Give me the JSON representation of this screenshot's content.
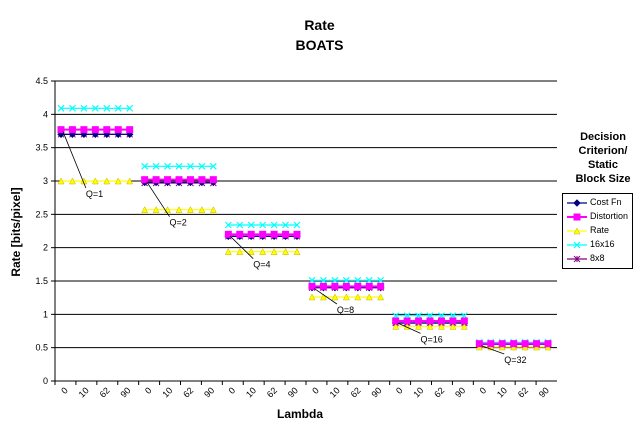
{
  "chart_data": {
    "type": "line",
    "title": "Rate",
    "subtitle": "BOATS",
    "xlabel": "Lambda",
    "ylabel": "Rate [bits/pixel]",
    "ylim": [
      0,
      4.5
    ],
    "yticks": [
      "0",
      "0.5",
      "1",
      "1.5",
      "2",
      "2.5",
      "3",
      "3.5",
      "4",
      "4.5"
    ],
    "grid": true,
    "categories": [
      "0",
      "10",
      "62",
      "90",
      "0",
      "10",
      "62",
      "90",
      "0",
      "10",
      "62",
      "90",
      "0",
      "10",
      "62",
      "90",
      "0",
      "10",
      "62",
      "90",
      "0",
      "10",
      "62",
      "90"
    ],
    "group_size": 4,
    "points_per_group": 7,
    "groups": [
      {
        "label": "Q=1",
        "cost_fn": 3.7,
        "distortion": 3.77,
        "rate": 3.0,
        "b16": 4.09,
        "b8": 3.7
      },
      {
        "label": "Q=2",
        "cost_fn": 2.98,
        "distortion": 3.02,
        "rate": 2.57,
        "b16": 3.22,
        "b8": 2.97
      },
      {
        "label": "Q=4",
        "cost_fn": 2.17,
        "distortion": 2.2,
        "rate": 1.94,
        "b16": 2.34,
        "b8": 2.17
      },
      {
        "label": "Q=8",
        "cost_fn": 1.4,
        "distortion": 1.42,
        "rate": 1.26,
        "b16": 1.51,
        "b8": 1.4
      },
      {
        "label": "Q=16",
        "cost_fn": 0.87,
        "distortion": 0.9,
        "rate": 0.82,
        "b16": 0.98,
        "b8": 0.87
      },
      {
        "label": "Q=32",
        "cost_fn": 0.55,
        "distortion": 0.56,
        "rate": 0.51,
        "b16": 0.58,
        "b8": 0.55
      }
    ],
    "series": [
      {
        "name": "Cost Fn",
        "key": "cost_fn",
        "color": "#000080",
        "marker": "diamond"
      },
      {
        "name": "Distortion",
        "key": "distortion",
        "color": "#ff00ff",
        "marker": "square"
      },
      {
        "name": "Rate",
        "key": "rate",
        "color": "#ffff00",
        "marker": "triangle"
      },
      {
        "name": "16x16",
        "key": "b16",
        "color": "#00ffff",
        "marker": "x"
      },
      {
        "name": "8x8",
        "key": "b8",
        "color": "#800080",
        "marker": "star"
      }
    ],
    "legend": {
      "title_lines": [
        "Decision",
        "Criterion/",
        "Static",
        "Block Size"
      ],
      "placement": "right"
    }
  }
}
